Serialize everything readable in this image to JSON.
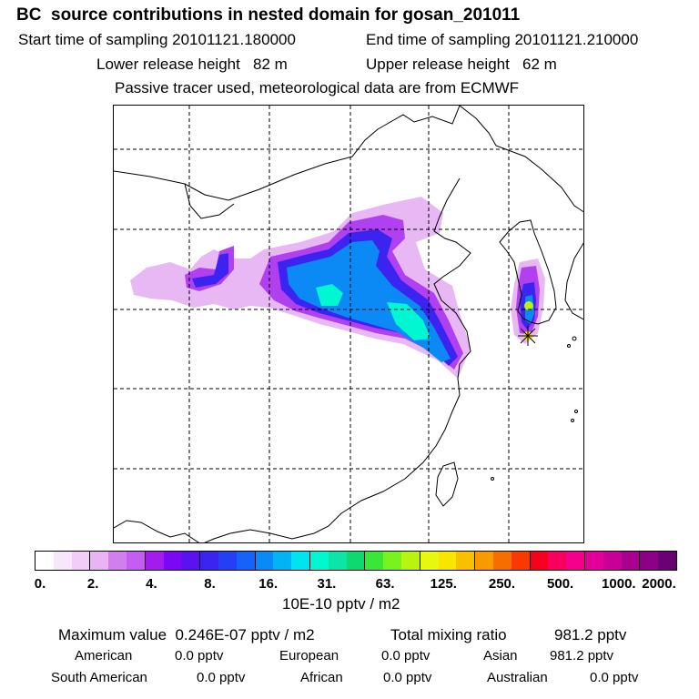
{
  "title": "BC  source contributions in nested domain for gosan_201011",
  "header": {
    "start_label": "Start time of sampling 20101121.180000",
    "end_label": "End time of sampling 20101121.210000",
    "lower_label": "Lower release height   82 m",
    "upper_label": "Upper release height   62 m",
    "tracer_line": "Passive tracer used, meteorological data are from ECMWF"
  },
  "colorbar": {
    "colors": [
      "#ffffff",
      "#f8e6fb",
      "#f1cdf7",
      "#eab3f3",
      "#d27fee",
      "#c35ef0",
      "#a21cf0",
      "#7c07f2",
      "#5a12f1",
      "#3b23f0",
      "#2540f4",
      "#1763f8",
      "#0b8af6",
      "#03b4f4",
      "#00e4f0",
      "#00f7d2",
      "#0de5a6",
      "#10d870",
      "#38e73a",
      "#7af21e",
      "#b7f410",
      "#e8f70f",
      "#f8e600",
      "#f8c000",
      "#f89a00",
      "#f76e00",
      "#f83a00",
      "#f8001f",
      "#f80060",
      "#f5008c",
      "#e10099",
      "#c80096",
      "#a9008f",
      "#8b0085",
      "#6a0074"
    ],
    "tick_labels": [
      "0.",
      "2.",
      "4.",
      "8.",
      "16.",
      "31.",
      "63.",
      "125.",
      "250.",
      "500.",
      "1000.",
      "2000."
    ],
    "unit_label": "10E-10 pptv / m2"
  },
  "summary": {
    "max_label": "Maximum value  0.246E-07 pptv / m2",
    "total_label": "Total mixing ratio",
    "total_value": "981.2 pptv",
    "regions": [
      {
        "name": "American",
        "value": "0.0 pptv"
      },
      {
        "name": "European",
        "value": "0.0 pptv"
      },
      {
        "name": "Asian",
        "value": "981.2 pptv"
      },
      {
        "name": "South American",
        "value": "0.0 pptv"
      },
      {
        "name": "African",
        "value": "0.0 pptv"
      },
      {
        "name": "Australian",
        "value": "0.0 pptv"
      }
    ]
  },
  "map": {
    "receptor_marker_color": "#f8e600",
    "plume_colors": {
      "outer": "#e8b8f5",
      "mid": "#b040f0",
      "inner": "#3b23f0",
      "core": "#0b8af6",
      "hot": "#00f7d2",
      "peak": "#b7f410"
    }
  }
}
